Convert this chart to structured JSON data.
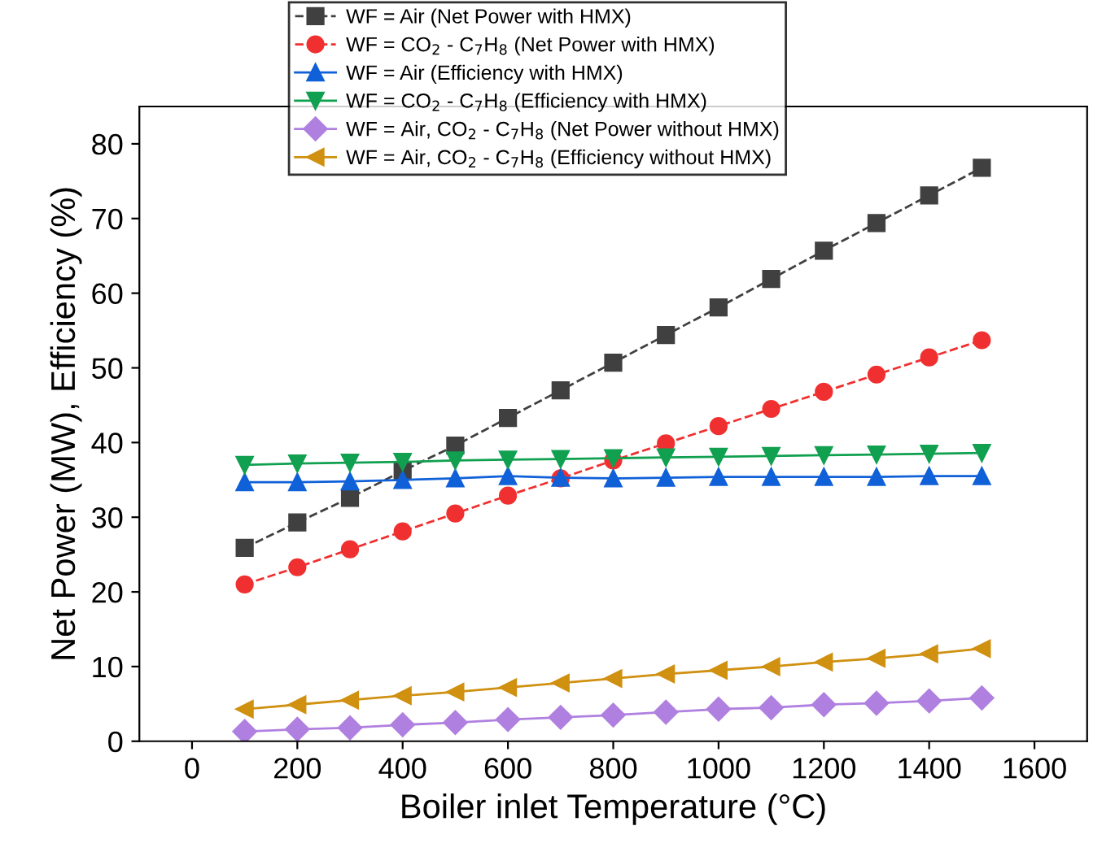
{
  "chart_data": {
    "type": "line",
    "xlabel": "Boiler inlet Temperature (°C)",
    "ylabel": "Net Power (MW), Efficiency (%)",
    "x": [
      100,
      200,
      300,
      400,
      500,
      600,
      700,
      800,
      900,
      1000,
      1100,
      1200,
      1300,
      1400,
      1500
    ],
    "xlim": [
      -100,
      1700
    ],
    "xticks": [
      0,
      200,
      400,
      600,
      800,
      1000,
      1200,
      1400,
      1600
    ],
    "ylim": [
      0,
      85
    ],
    "yticks": [
      0,
      10,
      20,
      30,
      40,
      50,
      60,
      70,
      80
    ],
    "grid": false,
    "legend": "top",
    "series": [
      {
        "name": "WF = Air (Net Power with HMX)",
        "color": "#404040",
        "marker": "square",
        "line_style": "dashed",
        "values": [
          25.9,
          29.3,
          32.6,
          36.2,
          39.6,
          43.3,
          47.0,
          50.7,
          54.4,
          58.1,
          61.9,
          65.7,
          69.4,
          73.1,
          76.8
        ]
      },
      {
        "name": "WF = CO$_{2}$ - C$_{7}$H$_{8}$ (Net Power with HMX)",
        "color": "#f03030",
        "marker": "circle",
        "line_style": "dashed",
        "values": [
          21.0,
          23.3,
          25.7,
          28.1,
          30.5,
          32.9,
          35.2,
          37.6,
          39.9,
          42.2,
          44.5,
          46.8,
          49.1,
          51.4,
          53.7
        ]
      },
      {
        "name": "WF = Air (Efficiency with HMX)",
        "color": "#1060d8",
        "marker": "triangle",
        "line_style": "solid",
        "values": [
          34.7,
          34.7,
          34.8,
          35.0,
          35.2,
          35.5,
          35.3,
          35.2,
          35.3,
          35.4,
          35.4,
          35.4,
          35.4,
          35.5,
          35.5
        ]
      },
      {
        "name": "WF = CO$_{2}$ - C$_{7}$H$_{8}$ (Efficiency with HMX)",
        "color": "#10a050",
        "marker": "triangle_down",
        "line_style": "solid",
        "values": [
          37.0,
          37.2,
          37.3,
          37.4,
          37.6,
          37.7,
          37.8,
          37.9,
          38.0,
          38.1,
          38.2,
          38.3,
          38.4,
          38.5,
          38.6
        ]
      },
      {
        "name": "WF = Air, CO$_{2}$ - C$_{7}$H$_{8}$ (Net Power without HMX)",
        "color": "#b080e0",
        "marker": "diamond",
        "line_style": "solid",
        "values": [
          1.3,
          1.6,
          1.8,
          2.2,
          2.5,
          2.9,
          3.2,
          3.5,
          3.9,
          4.3,
          4.5,
          4.9,
          5.1,
          5.4,
          5.8
        ]
      },
      {
        "name": "WF = Air, CO$_{2}$ - C$_{7}$H$_{8}$ (Efficiency without HMX)",
        "color": "#d09010",
        "marker": "triangle_left",
        "line_style": "solid",
        "values": [
          4.3,
          4.9,
          5.5,
          6.1,
          6.6,
          7.2,
          7.8,
          8.4,
          9.0,
          9.5,
          10.0,
          10.6,
          11.1,
          11.7,
          12.4
        ]
      }
    ]
  }
}
